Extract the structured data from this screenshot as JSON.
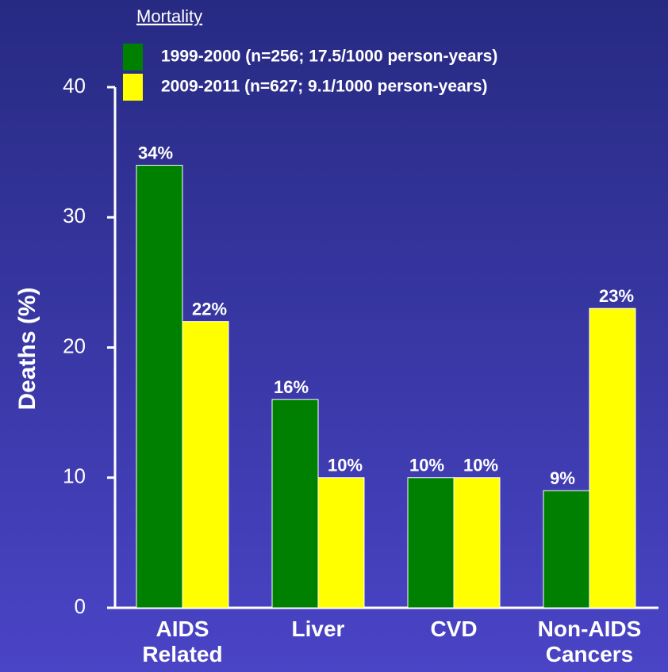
{
  "chart_data": {
    "type": "bar",
    "legend_title": "Mortality",
    "ylabel": "Deaths (%)",
    "categories": [
      "AIDS\nRelated",
      "Liver",
      "CVD",
      "Non-AIDS\nCancers"
    ],
    "series": [
      {
        "name": "1999-2000 (n=256; 17.5/1000 person-years)",
        "color": "#008000",
        "values": [
          34,
          16,
          10,
          9
        ],
        "value_labels": [
          "34%",
          "16%",
          "10%",
          "9%"
        ]
      },
      {
        "name": "2009-2011 (n=627; 9.1/1000 person-years)",
        "color": "#ffff00",
        "values": [
          22,
          10,
          10,
          23
        ],
        "value_labels": [
          "22%",
          "10%",
          "10%",
          "23%"
        ]
      }
    ],
    "ylim": [
      0,
      40
    ],
    "yticks": [
      0,
      10,
      20,
      30,
      40
    ]
  }
}
